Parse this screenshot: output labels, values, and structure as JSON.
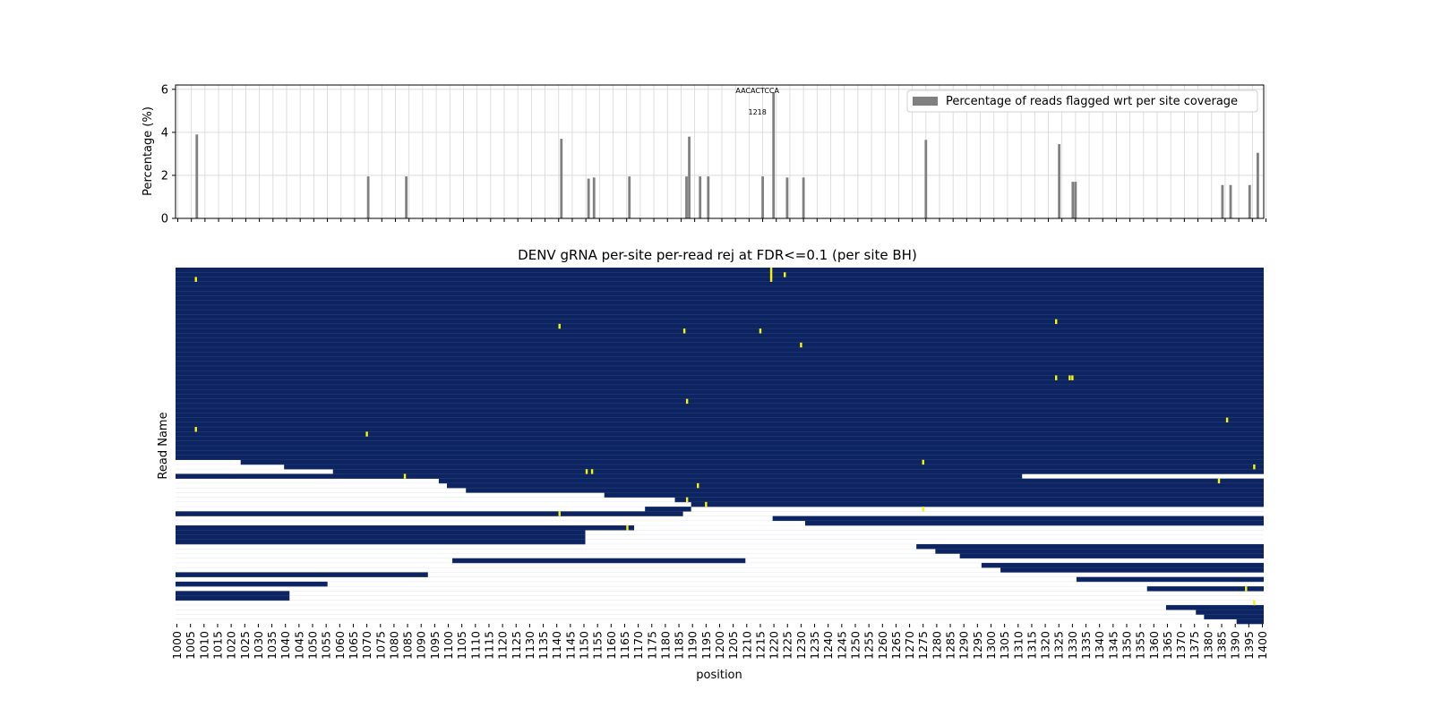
{
  "chart_data": [
    {
      "type": "bar",
      "ylabel": "Percentage (%)",
      "ylim": [
        0,
        6.2
      ],
      "xlim": [
        1000,
        1400
      ],
      "grid": true,
      "bar_color": "#808080",
      "legend": {
        "label": "Percentage of reads flagged wrt per site coverage",
        "location": "top-right"
      },
      "annotations": [
        {
          "x": 1218,
          "y": 6.0,
          "text": "AACACTCCA"
        },
        {
          "x": 1218,
          "y": 5.0,
          "text": "1218"
        }
      ],
      "bars": [
        {
          "x": 1007,
          "value": 3.9
        },
        {
          "x": 1070,
          "value": 1.95
        },
        {
          "x": 1084,
          "value": 1.95
        },
        {
          "x": 1141,
          "value": 3.7
        },
        {
          "x": 1151,
          "value": 1.85
        },
        {
          "x": 1153,
          "value": 1.9
        },
        {
          "x": 1166,
          "value": 1.95
        },
        {
          "x": 1187,
          "value": 1.95
        },
        {
          "x": 1188,
          "value": 3.8
        },
        {
          "x": 1192,
          "value": 1.95
        },
        {
          "x": 1195,
          "value": 1.95
        },
        {
          "x": 1215,
          "value": 1.95
        },
        {
          "x": 1219,
          "value": 5.85
        },
        {
          "x": 1224,
          "value": 1.9
        },
        {
          "x": 1230,
          "value": 1.9
        },
        {
          "x": 1275,
          "value": 3.65
        },
        {
          "x": 1324,
          "value": 3.45
        },
        {
          "x": 1329,
          "value": 1.7
        },
        {
          "x": 1330,
          "value": 1.7
        },
        {
          "x": 1384,
          "value": 1.55
        },
        {
          "x": 1387,
          "value": 1.55
        },
        {
          "x": 1394,
          "value": 1.55
        },
        {
          "x": 1397,
          "value": 3.05
        }
      ]
    },
    {
      "type": "heatmap",
      "title": "DENV gRNA per-site per-read rej at FDR<=0.1 (per site BH)",
      "xlabel": "position",
      "ylabel": "Read Name",
      "xlim": [
        1000,
        1401
      ],
      "x_tick_labels": [
        "1000",
        "1005",
        "1010",
        "1015",
        "1020",
        "1025",
        "1030",
        "1035",
        "1040",
        "1045",
        "1050",
        "1055",
        "1060",
        "1065",
        "1070",
        "1075",
        "1080",
        "1085",
        "1090",
        "1095",
        "1100",
        "1105",
        "1110",
        "1115",
        "1120",
        "1125",
        "1130",
        "1135",
        "1140",
        "1145",
        "1150",
        "1155",
        "1160",
        "1165",
        "1170",
        "1175",
        "1180",
        "1185",
        "1190",
        "1195",
        "1200",
        "1205",
        "1210",
        "1215",
        "1220",
        "1225",
        "1230",
        "1235",
        "1240",
        "1245",
        "1250",
        "1255",
        "1260",
        "1265",
        "1270",
        "1275",
        "1280",
        "1285",
        "1290",
        "1295",
        "1300",
        "1305",
        "1310",
        "1315",
        "1320",
        "1325",
        "1330",
        "1335",
        "1340",
        "1345",
        "1350",
        "1355",
        "1360",
        "1365",
        "1370",
        "1375",
        "1380",
        "1385",
        "1390",
        "1395",
        "1400"
      ],
      "n_reads": 76,
      "colors": {
        "covered": "#0c2461",
        "flagged": "#f5f50a",
        "uncovered": "#ffffff"
      },
      "coverage_rows": [
        {
          "from": 0,
          "to": 40,
          "start": 1000,
          "end": 1401
        },
        {
          "from": 41,
          "to": 41,
          "start": 1024,
          "end": 1401
        },
        {
          "from": 42,
          "to": 42,
          "start": 1040,
          "end": 1401
        },
        {
          "from": 43,
          "to": 43,
          "start": 1058,
          "end": 1401
        },
        {
          "from": 44,
          "to": 44,
          "start": 1000,
          "end": 1312
        },
        {
          "from": 45,
          "to": 45,
          "start": 1097,
          "end": 1401
        },
        {
          "from": 46,
          "to": 46,
          "start": 1100,
          "end": 1401
        },
        {
          "from": 47,
          "to": 47,
          "start": 1107,
          "end": 1401
        },
        {
          "from": 48,
          "to": 48,
          "start": 1158,
          "end": 1401
        },
        {
          "from": 49,
          "to": 49,
          "start": 1184,
          "end": 1401
        },
        {
          "from": 50,
          "to": 50,
          "start": 1190,
          "end": 1401
        },
        {
          "from": 51,
          "to": 51,
          "start": 1173,
          "end": 1190
        },
        {
          "from": 52,
          "to": 52,
          "start": 1000,
          "end": 1187
        },
        {
          "from": 53,
          "to": 53,
          "start": 1220,
          "end": 1401
        },
        {
          "from": 54,
          "to": 54,
          "start": 1232,
          "end": 1401
        },
        {
          "from": 55,
          "to": 55,
          "start": 1000,
          "end": 1169
        },
        {
          "from": 56,
          "to": 58,
          "start": 1000,
          "end": 1151
        },
        {
          "from": 59,
          "to": 59,
          "start": 1273,
          "end": 1401
        },
        {
          "from": 60,
          "to": 60,
          "start": 1280,
          "end": 1401
        },
        {
          "from": 61,
          "to": 61,
          "start": 1289,
          "end": 1401
        },
        {
          "from": 62,
          "to": 62,
          "start": 1102,
          "end": 1210
        },
        {
          "from": 63,
          "to": 63,
          "start": 1297,
          "end": 1401
        },
        {
          "from": 64,
          "to": 64,
          "start": 1304,
          "end": 1401
        },
        {
          "from": 65,
          "to": 65,
          "start": 1000,
          "end": 1093
        },
        {
          "from": 66,
          "to": 66,
          "start": 1332,
          "end": 1401
        },
        {
          "from": 67,
          "to": 67,
          "start": 1000,
          "end": 1056
        },
        {
          "from": 68,
          "to": 68,
          "start": 1358,
          "end": 1401
        },
        {
          "from": 69,
          "to": 70,
          "start": 1000,
          "end": 1042
        },
        {
          "from": 72,
          "to": 72,
          "start": 1365,
          "end": 1401
        },
        {
          "from": 73,
          "to": 73,
          "start": 1376,
          "end": 1401
        },
        {
          "from": 74,
          "to": 74,
          "start": 1379,
          "end": 1401
        },
        {
          "from": 75,
          "to": 75,
          "start": 1391,
          "end": 1401
        }
      ],
      "separator_rows": [
        {
          "row": 44,
          "start": 1312,
          "end": 1401
        },
        {
          "row": 53,
          "start": 1190,
          "end": 1220
        },
        {
          "row": 54,
          "start": 1210,
          "end": 1232
        }
      ],
      "flagged_cells": [
        {
          "x": 1219,
          "row": 0
        },
        {
          "x": 1219,
          "row": 1
        },
        {
          "x": 1219,
          "row": 2
        },
        {
          "x": 1224,
          "row": 1
        },
        {
          "x": 1007,
          "row": 2
        },
        {
          "x": 1324,
          "row": 11
        },
        {
          "x": 1141,
          "row": 12
        },
        {
          "x": 1187,
          "row": 13
        },
        {
          "x": 1215,
          "row": 13
        },
        {
          "x": 1230,
          "row": 16
        },
        {
          "x": 1324,
          "row": 23
        },
        {
          "x": 1329,
          "row": 23
        },
        {
          "x": 1330,
          "row": 23
        },
        {
          "x": 1188,
          "row": 28
        },
        {
          "x": 1387,
          "row": 32
        },
        {
          "x": 1007,
          "row": 34
        },
        {
          "x": 1070,
          "row": 35
        },
        {
          "x": 1275,
          "row": 41
        },
        {
          "x": 1397,
          "row": 42
        },
        {
          "x": 1151,
          "row": 43
        },
        {
          "x": 1153,
          "row": 43
        },
        {
          "x": 1084,
          "row": 44
        },
        {
          "x": 1384,
          "row": 45
        },
        {
          "x": 1192,
          "row": 46
        },
        {
          "x": 1188,
          "row": 49
        },
        {
          "x": 1195,
          "row": 50
        },
        {
          "x": 1275,
          "row": 51
        },
        {
          "x": 1141,
          "row": 52
        },
        {
          "x": 1166,
          "row": 55
        },
        {
          "x": 1394,
          "row": 68
        },
        {
          "x": 1397,
          "row": 71
        }
      ]
    }
  ]
}
